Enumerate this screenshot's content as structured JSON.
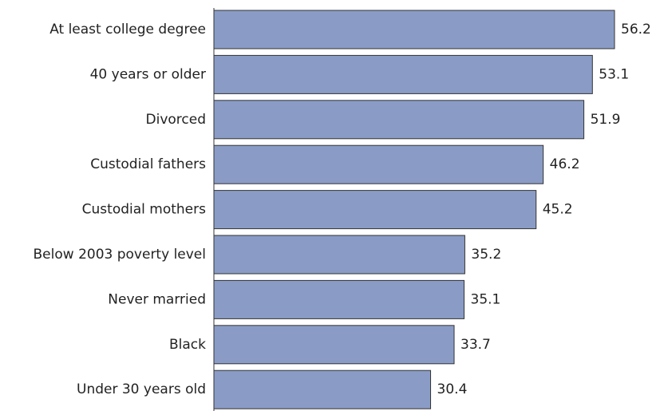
{
  "chart_data": {
    "type": "bar",
    "orientation": "horizontal",
    "categories": [
      "At least college degree",
      "40 years or older",
      "Divorced",
      "Custodial fathers",
      "Custodial mothers",
      "Below 2003 poverty level",
      "Never married",
      "Black",
      "Under 30 years old"
    ],
    "values": [
      56.2,
      53.1,
      51.9,
      46.2,
      45.2,
      35.2,
      35.1,
      33.7,
      30.4
    ],
    "color": "#8a9cc6"
  }
}
